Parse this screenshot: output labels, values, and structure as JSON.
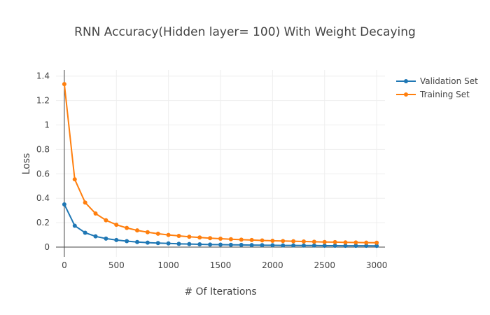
{
  "chart_data": {
    "type": "line",
    "title": "RNN Accuracy(Hidden layer= 100) With Weight Decaying",
    "xlabel": "# Of Iterations",
    "ylabel": "Loss",
    "xlim": [
      -80,
      3080
    ],
    "ylim": [
      -0.08,
      1.45
    ],
    "xticks": [
      0,
      500,
      1000,
      1500,
      2000,
      2500,
      3000
    ],
    "yticks": [
      0,
      0.2,
      0.4,
      0.6,
      0.8,
      1,
      1.2,
      1.4
    ],
    "grid": true,
    "legend_position": "top-right",
    "x": [
      0,
      100,
      200,
      300,
      400,
      500,
      600,
      700,
      800,
      900,
      1000,
      1100,
      1200,
      1300,
      1400,
      1500,
      1600,
      1700,
      1800,
      1900,
      2000,
      2100,
      2200,
      2300,
      2400,
      2500,
      2600,
      2700,
      2800,
      2900,
      3000
    ],
    "series": [
      {
        "name": "Validation Set",
        "color": "#1f77b4",
        "values": [
          0.35,
          0.175,
          0.118,
          0.088,
          0.07,
          0.058,
          0.049,
          0.042,
          0.037,
          0.033,
          0.03,
          0.027,
          0.025,
          0.023,
          0.021,
          0.02,
          0.019,
          0.018,
          0.017,
          0.016,
          0.015,
          0.014,
          0.014,
          0.013,
          0.013,
          0.012,
          0.012,
          0.011,
          0.011,
          0.011,
          0.01
        ]
      },
      {
        "name": "Training Set",
        "color": "#ff7f0e",
        "values": [
          1.335,
          0.555,
          0.365,
          0.275,
          0.22,
          0.183,
          0.157,
          0.137,
          0.122,
          0.11,
          0.1,
          0.092,
          0.085,
          0.079,
          0.073,
          0.069,
          0.065,
          0.061,
          0.058,
          0.055,
          0.052,
          0.05,
          0.048,
          0.046,
          0.044,
          0.042,
          0.041,
          0.039,
          0.038,
          0.037,
          0.036
        ]
      }
    ]
  }
}
